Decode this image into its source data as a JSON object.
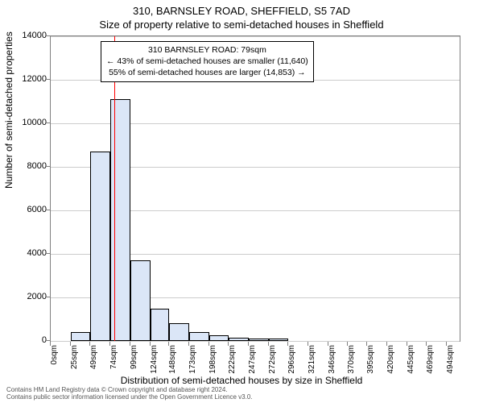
{
  "title_main": "310, BARNSLEY ROAD, SHEFFIELD, S5 7AD",
  "title_sub": "Size of property relative to semi-detached houses in Sheffield",
  "y_axis_label": "Number of semi-detached properties",
  "x_axis_label": "Distribution of semi-detached houses by size in Sheffield",
  "footer_line1": "Contains HM Land Registry data © Crown copyright and database right 2024.",
  "footer_line2": "Contains public sector information licensed under the Open Government Licence v3.0.",
  "annotation": {
    "line1": "310 BARNSLEY ROAD: 79sqm",
    "line2": "← 43% of semi-detached houses are smaller (11,640)",
    "line3": "55% of semi-detached houses are larger (14,853) →"
  },
  "chart": {
    "type": "histogram",
    "background_color": "#ffffff",
    "grid_color": "#cccccc",
    "axis_color": "#808080",
    "bar_fill": "#dbe6f7",
    "bar_border": "#000000",
    "ref_line_color": "#ff0000",
    "ref_line_x": 79,
    "xlim": [
      0,
      510
    ],
    "ylim": [
      0,
      14000
    ],
    "y_ticks": [
      0,
      2000,
      4000,
      6000,
      8000,
      10000,
      12000,
      14000
    ],
    "x_ticks": [
      {
        "v": 0,
        "label": "0sqm"
      },
      {
        "v": 25,
        "label": "25sqm"
      },
      {
        "v": 49,
        "label": "49sqm"
      },
      {
        "v": 74,
        "label": "74sqm"
      },
      {
        "v": 99,
        "label": "99sqm"
      },
      {
        "v": 124,
        "label": "124sqm"
      },
      {
        "v": 148,
        "label": "148sqm"
      },
      {
        "v": 173,
        "label": "173sqm"
      },
      {
        "v": 198,
        "label": "198sqm"
      },
      {
        "v": 222,
        "label": "222sqm"
      },
      {
        "v": 247,
        "label": "247sqm"
      },
      {
        "v": 272,
        "label": "272sqm"
      },
      {
        "v": 296,
        "label": "296sqm"
      },
      {
        "v": 321,
        "label": "321sqm"
      },
      {
        "v": 346,
        "label": "346sqm"
      },
      {
        "v": 370,
        "label": "370sqm"
      },
      {
        "v": 395,
        "label": "395sqm"
      },
      {
        "v": 420,
        "label": "420sqm"
      },
      {
        "v": 445,
        "label": "445sqm"
      },
      {
        "v": 469,
        "label": "469sqm"
      },
      {
        "v": 494,
        "label": "494sqm"
      }
    ],
    "bars": [
      {
        "x0": 0,
        "x1": 25,
        "y": 0
      },
      {
        "x0": 25,
        "x1": 49,
        "y": 400
      },
      {
        "x0": 49,
        "x1": 74,
        "y": 8700
      },
      {
        "x0": 74,
        "x1": 99,
        "y": 11100
      },
      {
        "x0": 99,
        "x1": 124,
        "y": 3700
      },
      {
        "x0": 124,
        "x1": 148,
        "y": 1500
      },
      {
        "x0": 148,
        "x1": 173,
        "y": 800
      },
      {
        "x0": 173,
        "x1": 198,
        "y": 420
      },
      {
        "x0": 198,
        "x1": 222,
        "y": 250
      },
      {
        "x0": 222,
        "x1": 247,
        "y": 150
      },
      {
        "x0": 247,
        "x1": 272,
        "y": 100
      },
      {
        "x0": 272,
        "x1": 296,
        "y": 120
      },
      {
        "x0": 296,
        "x1": 321,
        "y": 0
      },
      {
        "x0": 321,
        "x1": 346,
        "y": 0
      },
      {
        "x0": 346,
        "x1": 370,
        "y": 0
      },
      {
        "x0": 370,
        "x1": 395,
        "y": 0
      }
    ],
    "title_fontsize": 13,
    "label_fontsize": 12,
    "tick_fontsize": 11
  }
}
